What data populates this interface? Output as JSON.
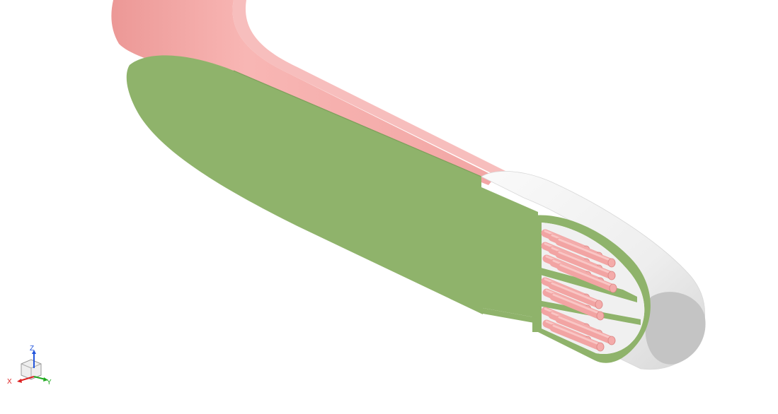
{
  "viewport": {
    "background": "#ffffff",
    "colors": {
      "outer_shell": "#f5a8a6",
      "outer_shell_shade": "#ec9593",
      "section_cut": "#8fb36b",
      "section_cut_edge": "#7d9f5b",
      "end_cap": "#f2f2f2",
      "end_cap_shade": "#c4c4c4",
      "rod": "#f2a4a3",
      "rod_shade": "#d98483"
    },
    "rod_count": 18
  },
  "axis_triad": {
    "z_label": "Z",
    "x_label": "X",
    "y_label": "Y",
    "z_color": "#2255dd",
    "x_color": "#dd2222",
    "y_color": "#22aa22"
  }
}
